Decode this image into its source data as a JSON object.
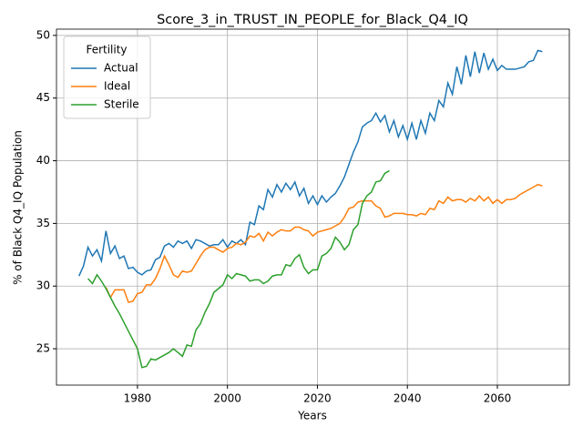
{
  "chart_data": {
    "type": "line",
    "title": "Score_3_in_TRUST_IN_PEOPLE_for_Black_Q4_IQ",
    "x_label": "Years",
    "y_label": "% of Black Q4_IQ Population",
    "legend_title": "Fertility",
    "legend_position": "upper left",
    "grid": true,
    "xlim": [
      1962,
      2076
    ],
    "ylim": [
      22.1,
      50.5
    ],
    "xticks": [
      1980,
      2000,
      2020,
      2040,
      2060
    ],
    "yticks": [
      25,
      30,
      35,
      40,
      45,
      50
    ],
    "x": [
      1967,
      1968,
      1969,
      1970,
      1971,
      1972,
      1973,
      1974,
      1975,
      1976,
      1977,
      1978,
      1979,
      1980,
      1981,
      1982,
      1983,
      1984,
      1985,
      1986,
      1987,
      1988,
      1989,
      1990,
      1991,
      1992,
      1993,
      1994,
      1995,
      1996,
      1997,
      1998,
      1999,
      2000,
      2001,
      2002,
      2003,
      2004,
      2005,
      2006,
      2007,
      2008,
      2009,
      2010,
      2011,
      2012,
      2013,
      2014,
      2015,
      2016,
      2017,
      2018,
      2019,
      2020,
      2021,
      2022,
      2023,
      2024,
      2025,
      2026,
      2027,
      2028,
      2029,
      2030,
      2031,
      2032,
      2033,
      2034,
      2035,
      2036,
      2037,
      2038,
      2039,
      2040,
      2041,
      2042,
      2043,
      2044,
      2045,
      2046,
      2047,
      2048,
      2049,
      2050,
      2051,
      2052,
      2053,
      2054,
      2055,
      2056,
      2057,
      2058,
      2059,
      2060,
      2061,
      2062,
      2063,
      2064,
      2065,
      2066,
      2067,
      2068,
      2069,
      2070
    ],
    "series": [
      {
        "name": "Actual",
        "color": "#1f77b4",
        "values": [
          30.8,
          31.6,
          33.1,
          32.4,
          32.9,
          32.0,
          34.4,
          32.6,
          33.2,
          32.2,
          32.4,
          31.4,
          31.5,
          31.1,
          30.9,
          31.2,
          31.3,
          32.1,
          32.3,
          33.2,
          33.4,
          33.1,
          33.6,
          33.4,
          33.6,
          33.0,
          33.7,
          33.6,
          33.4,
          33.2,
          33.3,
          33.3,
          33.7,
          33.1,
          33.6,
          33.4,
          33.7,
          33.3,
          35.1,
          34.9,
          36.4,
          36.1,
          37.7,
          37.1,
          38.1,
          37.5,
          38.2,
          37.7,
          38.3,
          37.2,
          37.8,
          36.6,
          37.2,
          36.5,
          37.2,
          36.7,
          37.1,
          37.4,
          38.0,
          38.7,
          39.7,
          40.7,
          41.5,
          42.7,
          43.0,
          43.2,
          43.8,
          43.1,
          43.6,
          42.3,
          43.2,
          41.9,
          42.8,
          41.7,
          43.0,
          41.7,
          43.2,
          42.2,
          43.8,
          43.2,
          44.8,
          44.3,
          46.2,
          45.3,
          47.5,
          46.1,
          48.4,
          46.7,
          48.7,
          47.0,
          48.6,
          47.3,
          48.1,
          47.2,
          47.6,
          47.3,
          47.3,
          47.3,
          47.4,
          47.5,
          47.9,
          48.0,
          48.8,
          48.7
        ]
      },
      {
        "name": "Ideal",
        "color": "#ff7f0e",
        "values": [
          null,
          null,
          null,
          null,
          null,
          null,
          29.9,
          29.1,
          29.7,
          29.7,
          29.7,
          28.7,
          28.8,
          29.4,
          29.5,
          30.1,
          30.1,
          30.6,
          31.4,
          32.4,
          31.7,
          30.9,
          30.7,
          31.2,
          31.1,
          31.2,
          31.8,
          32.4,
          32.9,
          33.1,
          33.1,
          32.9,
          32.7,
          33.0,
          33.1,
          33.4,
          33.3,
          33.5,
          34.0,
          33.9,
          34.2,
          33.6,
          34.3,
          34.0,
          34.3,
          34.5,
          34.4,
          34.4,
          34.7,
          34.7,
          34.5,
          34.4,
          34.0,
          34.3,
          34.4,
          34.5,
          34.6,
          34.8,
          35.0,
          35.5,
          36.2,
          36.3,
          36.7,
          36.8,
          36.8,
          36.8,
          36.4,
          36.2,
          35.5,
          35.6,
          35.8,
          35.8,
          35.8,
          35.7,
          35.7,
          35.6,
          35.8,
          35.7,
          36.2,
          36.1,
          36.8,
          36.6,
          37.1,
          36.8,
          36.9,
          36.9,
          36.7,
          37.0,
          36.8,
          37.2,
          36.8,
          37.1,
          36.6,
          36.9,
          36.6,
          36.9,
          36.9,
          37.0,
          37.3,
          37.5,
          37.7,
          37.9,
          38.1,
          38.0
        ]
      },
      {
        "name": "Sterile",
        "color": "#2ca02c",
        "values": [
          null,
          null,
          30.6,
          30.2,
          30.9,
          30.4,
          29.8,
          29.1,
          28.4,
          27.8,
          27.1,
          26.4,
          25.7,
          25.0,
          23.5,
          23.6,
          24.2,
          24.1,
          24.3,
          24.5,
          24.7,
          25.0,
          24.7,
          24.4,
          25.3,
          25.2,
          26.5,
          27.0,
          27.9,
          28.6,
          29.5,
          29.8,
          30.1,
          30.9,
          30.6,
          31.0,
          30.9,
          30.8,
          30.4,
          30.5,
          30.5,
          30.2,
          30.4,
          30.8,
          30.9,
          30.9,
          31.7,
          31.6,
          32.2,
          32.5,
          31.5,
          31.0,
          31.3,
          31.3,
          32.4,
          32.6,
          33.0,
          33.9,
          33.5,
          32.9,
          33.3,
          34.5,
          34.9,
          36.6,
          37.2,
          37.5,
          38.3,
          38.4,
          39.0,
          39.2,
          null,
          null,
          null,
          null,
          null,
          null,
          null,
          null,
          null,
          null,
          null,
          null,
          null,
          null,
          null,
          null,
          null,
          null,
          null,
          null,
          null,
          null,
          null,
          null,
          null,
          null,
          null,
          null,
          null,
          null,
          null,
          null,
          null,
          null
        ]
      }
    ]
  }
}
